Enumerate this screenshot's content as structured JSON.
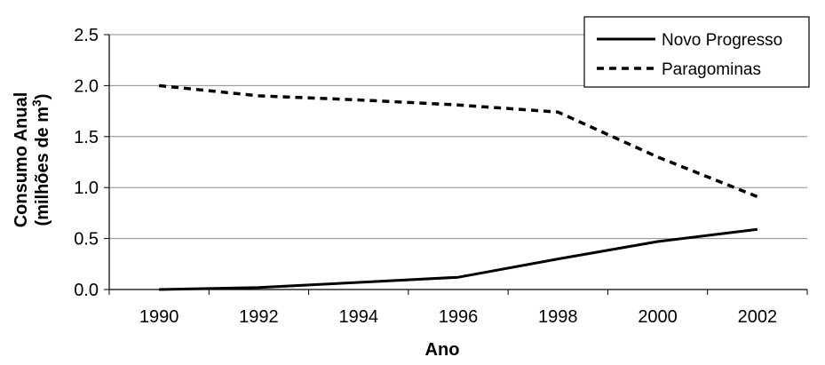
{
  "chart_data": {
    "type": "line",
    "x": [
      1990,
      1992,
      1994,
      1996,
      1998,
      2000,
      2002
    ],
    "x_tick_labels": [
      "1990",
      "1992",
      "1994",
      "1996",
      "1998",
      "2000",
      "2002"
    ],
    "y_tick_labels": [
      "0.0",
      "0.5",
      "1.0",
      "1.5",
      "2.0",
      "2.5"
    ],
    "ylim": [
      0,
      2.5
    ],
    "xlabel": "Ano",
    "ylabel": {
      "line1": "Consumo Anual",
      "line2_prefix": "(milhões de m",
      "line2_superscript": "3",
      "line2_suffix": ")"
    },
    "grid": "horizontal",
    "legend_position": "top-right",
    "series": [
      {
        "name": "Novo Progresso",
        "style": "solid",
        "color": "#000000",
        "values": [
          0.0,
          0.02,
          0.07,
          0.12,
          0.3,
          0.47,
          0.59
        ]
      },
      {
        "name": "Paragominas",
        "style": "dashed",
        "color": "#000000",
        "values": [
          2.0,
          1.9,
          1.86,
          1.81,
          1.74,
          1.3,
          0.91
        ]
      }
    ]
  }
}
